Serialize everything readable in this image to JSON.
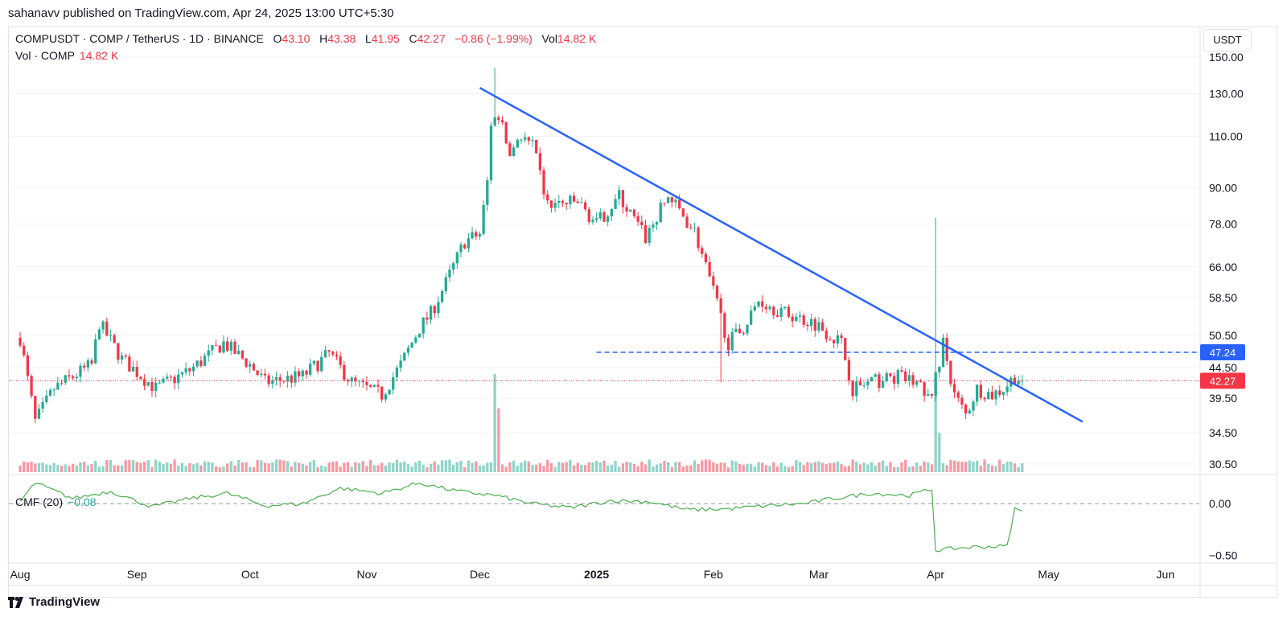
{
  "header": {
    "publisher_line": "sahanavv published on TradingView.com, Apr 24, 2025 13:00 UTC+5:30"
  },
  "legend": {
    "symbol": "COMPUSDT · COMP / TetherUS · 1D · BINANCE",
    "open_label": "O",
    "open": "43.10",
    "high_label": "H",
    "high": "43.38",
    "low_label": "L",
    "low": "41.95",
    "close_label": "C",
    "close": "42.27",
    "change": "−0.86 (−1.99%)",
    "vol_label": "Vol",
    "vol": "14.82 K",
    "vol_series_label": "Vol · COMP",
    "vol_series_value": "14.82 K"
  },
  "cmf_legend": {
    "label": "CMF (20)",
    "value": "−0.08"
  },
  "price_axis": {
    "currency_button": "USDT",
    "ticks": [
      "150.00",
      "130.00",
      "110.00",
      "90.00",
      "78.00",
      "66.00",
      "58.50",
      "50.50",
      "44.50",
      "39.50",
      "34.50",
      "30.50"
    ],
    "cmf_ticks": [
      "0.00",
      "−0.50"
    ],
    "badge_level": "47.24",
    "badge_last": "42.27"
  },
  "time_axis": {
    "labels": [
      "Aug",
      "Sep",
      "Oct",
      "Nov",
      "Dec",
      "2025",
      "Feb",
      "Mar",
      "Apr",
      "May",
      "Jun"
    ]
  },
  "footer": {
    "brand": "TradingView"
  },
  "colors": {
    "up": "#22ab94",
    "down": "#f23645",
    "trendline": "#2962ff",
    "level": "#2962ff",
    "cmf": "#4caf50",
    "grid": "#f0f3fa"
  },
  "chart_data": {
    "type": "candlestick",
    "symbol": "COMPUSDT",
    "interval": "1D",
    "scale": "log",
    "y_ticks": [
      30.5,
      34.5,
      39.5,
      44.5,
      50.5,
      58.5,
      66,
      78,
      90,
      110,
      130,
      150
    ],
    "time_labels": [
      "Aug",
      "Sep",
      "Oct",
      "Nov",
      "Dec",
      "2025",
      "Feb",
      "Mar",
      "Apr",
      "May",
      "Jun"
    ],
    "price_path": [
      [
        "2024-08-01",
        50
      ],
      [
        "2024-08-05",
        36
      ],
      [
        "2024-08-10",
        41
      ],
      [
        "2024-08-20",
        45
      ],
      [
        "2024-08-22",
        53
      ],
      [
        "2024-08-28",
        46
      ],
      [
        "2024-09-06",
        41
      ],
      [
        "2024-09-15",
        44
      ],
      [
        "2024-09-24",
        49
      ],
      [
        "2024-10-01",
        45
      ],
      [
        "2024-10-05",
        42
      ],
      [
        "2024-10-15",
        43
      ],
      [
        "2024-10-22",
        47
      ],
      [
        "2024-10-28",
        42
      ],
      [
        "2024-11-05",
        40
      ],
      [
        "2024-11-10",
        45
      ],
      [
        "2024-11-15",
        52
      ],
      [
        "2024-11-18",
        55
      ],
      [
        "2024-11-22",
        62
      ],
      [
        "2024-11-27",
        73
      ],
      [
        "2024-12-01",
        75
      ],
      [
        "2024-12-03",
        92
      ],
      [
        "2024-12-04",
        116
      ],
      [
        "2024-12-06",
        120
      ],
      [
        "2024-12-09",
        102
      ],
      [
        "2024-12-11",
        110
      ],
      [
        "2024-12-15",
        106
      ],
      [
        "2024-12-19",
        84
      ],
      [
        "2024-12-27",
        85
      ],
      [
        "2025-01-01",
        78
      ],
      [
        "2025-01-07",
        87
      ],
      [
        "2025-01-14",
        74
      ],
      [
        "2025-01-20",
        87
      ],
      [
        "2025-01-27",
        76
      ],
      [
        "2025-02-02",
        57
      ],
      [
        "2025-02-05",
        49
      ],
      [
        "2025-02-10",
        53
      ],
      [
        "2025-02-13",
        58
      ],
      [
        "2025-02-20",
        55
      ],
      [
        "2025-02-28",
        53
      ],
      [
        "2025-03-07",
        49
      ],
      [
        "2025-03-10",
        41
      ],
      [
        "2025-03-15",
        42
      ],
      [
        "2025-03-22",
        43
      ],
      [
        "2025-03-27",
        42
      ],
      [
        "2025-03-31",
        39
      ],
      [
        "2025-04-01",
        43
      ],
      [
        "2025-04-03",
        49
      ],
      [
        "2025-04-06",
        40
      ],
      [
        "2025-04-09",
        37
      ],
      [
        "2025-04-12",
        41
      ],
      [
        "2025-04-16",
        40
      ],
      [
        "2025-04-19",
        41
      ],
      [
        "2025-04-22",
        43
      ],
      [
        "2025-04-24",
        42.27
      ]
    ],
    "notable_wicks": [
      {
        "date": "2024-12-05",
        "high": 144
      },
      {
        "date": "2025-02-03",
        "low": 42
      },
      {
        "date": "2025-04-01",
        "high": 80
      }
    ],
    "trendline": {
      "from": [
        "2024-12-01",
        133
      ],
      "to": [
        "2025-05-10",
        36
      ]
    },
    "horizontal_level": 47.24,
    "last_price": 42.27,
    "volume_spikes": [
      {
        "date": "2024-12-05",
        "rel": 1.0
      },
      {
        "date": "2024-12-06",
        "rel": 0.65
      },
      {
        "date": "2025-04-01",
        "rel": 1.0
      },
      {
        "date": "2025-04-02",
        "rel": 0.4
      }
    ],
    "cmf": {
      "name": "CMF (20)",
      "ylim": [
        -0.55,
        0.25
      ],
      "ticks": [
        0,
        -0.5
      ],
      "path": [
        [
          "2024-08-01",
          0.02
        ],
        [
          "2024-08-05",
          0.2
        ],
        [
          "2024-08-15",
          0.05
        ],
        [
          "2024-08-25",
          0.12
        ],
        [
          "2024-09-05",
          -0.03
        ],
        [
          "2024-09-15",
          0.05
        ],
        [
          "2024-09-25",
          0.1
        ],
        [
          "2024-10-05",
          -0.02
        ],
        [
          "2024-10-15",
          0.0
        ],
        [
          "2024-10-25",
          0.15
        ],
        [
          "2024-11-05",
          0.1
        ],
        [
          "2024-11-15",
          0.2
        ],
        [
          "2024-11-25",
          0.12
        ],
        [
          "2024-12-05",
          0.08
        ],
        [
          "2024-12-15",
          0.0
        ],
        [
          "2024-12-25",
          -0.04
        ],
        [
          "2025-01-05",
          0.03
        ],
        [
          "2025-01-15",
          0.02
        ],
        [
          "2025-01-25",
          -0.06
        ],
        [
          "2025-02-05",
          -0.05
        ],
        [
          "2025-02-15",
          -0.02
        ],
        [
          "2025-02-25",
          0.0
        ],
        [
          "2025-03-05",
          0.05
        ],
        [
          "2025-03-15",
          0.1
        ],
        [
          "2025-03-25",
          0.08
        ],
        [
          "2025-03-31",
          0.14
        ],
        [
          "2025-04-01",
          -0.45
        ],
        [
          "2025-04-10",
          -0.42
        ],
        [
          "2025-04-20",
          -0.41
        ],
        [
          "2025-04-22",
          -0.05
        ],
        [
          "2025-04-24",
          -0.08
        ]
      ]
    }
  }
}
